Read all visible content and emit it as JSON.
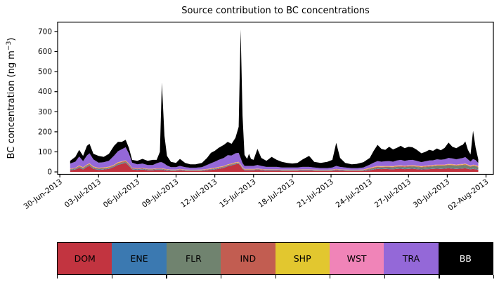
{
  "figure": {
    "title": "Source contribution to BC concentrations",
    "ylabel_main": "BC concentration (ng m",
    "ylabel_sup": "−3",
    "ylabel_close": ")"
  },
  "legend": {
    "items": [
      {
        "label": "DOM",
        "color": "#c23440",
        "text_color": "#000000"
      },
      {
        "label": "ENE",
        "color": "#3b79b1",
        "text_color": "#000000"
      },
      {
        "label": "FLR",
        "color": "#70836f",
        "text_color": "#000000"
      },
      {
        "label": "IND",
        "color": "#c25d51",
        "text_color": "#000000"
      },
      {
        "label": "SHP",
        "color": "#e2c72f",
        "text_color": "#000000"
      },
      {
        "label": "WST",
        "color": "#f084b8",
        "text_color": "#000000"
      },
      {
        "label": "TRA",
        "color": "#9468d8",
        "text_color": "#000000"
      },
      {
        "label": "BB",
        "color": "#000000",
        "text_color": "#ffffff"
      }
    ]
  },
  "chart_data": {
    "type": "area",
    "stacked": true,
    "title": "Source contribution to BC concentrations",
    "xlabel": "",
    "ylabel": "BC concentration (ng m⁻³)",
    "y_ticks": [
      0,
      100,
      200,
      300,
      400,
      500,
      600,
      700
    ],
    "ylim": [
      0,
      745
    ],
    "x_tick_days": [
      0,
      3,
      6,
      9,
      12,
      15,
      18,
      21,
      24,
      27,
      30,
      33
    ],
    "x_tick_labels": [
      "30-Jun-2013",
      "03-Jul-2013",
      "06-Jul-2013",
      "09-Jul-2013",
      "12-Jul-2013",
      "15-Jul-2013",
      "18-Jul-2013",
      "21-Jul-2013",
      "24-Jul-2013",
      "27-Jul-2013",
      "30-Jul-2013",
      "02-Aug-2013"
    ],
    "x_days": [
      0.8,
      1.2,
      1.5,
      1.8,
      2.1,
      2.3,
      2.6,
      3.0,
      3.4,
      3.8,
      4.2,
      4.5,
      4.8,
      5.1,
      5.35,
      5.6,
      6.0,
      6.4,
      6.8,
      7.2,
      7.5,
      7.75,
      7.9,
      8.1,
      8.3,
      8.6,
      9.0,
      9.3,
      9.7,
      10.1,
      10.5,
      11.0,
      11.4,
      11.7,
      12.0,
      12.3,
      12.7,
      13.0,
      13.3,
      13.6,
      13.85,
      14.0,
      14.15,
      14.3,
      14.5,
      14.65,
      14.8,
      15.0,
      15.3,
      15.6,
      16.0,
      16.4,
      16.8,
      17.2,
      17.6,
      18.0,
      18.4,
      18.8,
      19.3,
      19.7,
      20.2,
      20.7,
      21.1,
      21.4,
      21.7,
      22.1,
      22.6,
      23.0,
      23.5,
      24.0,
      24.3,
      24.6,
      24.9,
      25.2,
      25.5,
      25.8,
      26.1,
      26.4,
      26.7,
      27.0,
      27.3,
      27.6,
      28.0,
      28.3,
      28.6,
      28.9,
      29.2,
      29.5,
      29.8,
      30.1,
      30.4,
      30.7,
      31.0,
      31.2,
      31.4,
      31.6,
      31.8,
      32.0,
      32.2,
      32.4
    ],
    "series": [
      {
        "name": "DOM",
        "color": "#c23440",
        "values": [
          8,
          12,
          20,
          12,
          25,
          30,
          15,
          10,
          12,
          15,
          25,
          35,
          40,
          45,
          30,
          12,
          10,
          12,
          8,
          8,
          10,
          10,
          10,
          8,
          6,
          5,
          5,
          8,
          5,
          4,
          4,
          5,
          8,
          10,
          12,
          15,
          20,
          28,
          32,
          38,
          40,
          30,
          15,
          8,
          8,
          8,
          8,
          8,
          10,
          8,
          6,
          6,
          6,
          5,
          5,
          5,
          5,
          6,
          6,
          5,
          4,
          4,
          5,
          8,
          6,
          5,
          4,
          4,
          5,
          8,
          12,
          15,
          14,
          15,
          14,
          13,
          15,
          16,
          14,
          15,
          16,
          14,
          12,
          13,
          14,
          15,
          16,
          15,
          16,
          18,
          16,
          15,
          16,
          17,
          18,
          15,
          13,
          15,
          13,
          11
        ]
      },
      {
        "name": "ENE",
        "color": "#3b79b1",
        "values": [
          2,
          2,
          2,
          2,
          2,
          2,
          2,
          2,
          2,
          2,
          2,
          2,
          2,
          2,
          2,
          2,
          2,
          2,
          2,
          2,
          2,
          2,
          2,
          2,
          2,
          2,
          2,
          2,
          2,
          2,
          2,
          2,
          2,
          2,
          2,
          2,
          2,
          2,
          2,
          2,
          2,
          2,
          2,
          2,
          2,
          2,
          2,
          2,
          2,
          2,
          2,
          2,
          2,
          2,
          2,
          2,
          2,
          2,
          2,
          2,
          2,
          2,
          2,
          2,
          2,
          2,
          2,
          2,
          2,
          2,
          2,
          2,
          2,
          2,
          2,
          2,
          2,
          2,
          2,
          2,
          2,
          2,
          2,
          2,
          2,
          2,
          2,
          2,
          2,
          2,
          2,
          2,
          2,
          2,
          2,
          2,
          2,
          2,
          2,
          2
        ]
      },
      {
        "name": "FLR",
        "color": "#70836f",
        "values": [
          3,
          3,
          4,
          4,
          4,
          5,
          4,
          3,
          3,
          3,
          3,
          4,
          4,
          4,
          3,
          2,
          2,
          2,
          2,
          2,
          2,
          2,
          2,
          2,
          2,
          1,
          1,
          1,
          1,
          1,
          1,
          1,
          1,
          1,
          2,
          2,
          2,
          2,
          2,
          2,
          2,
          2,
          2,
          1,
          1,
          1,
          1,
          1,
          1,
          1,
          1,
          1,
          1,
          1,
          1,
          1,
          1,
          1,
          1,
          1,
          1,
          1,
          1,
          1,
          1,
          1,
          1,
          1,
          1,
          4,
          5,
          6,
          6,
          6,
          7,
          7,
          8,
          8,
          8,
          9,
          9,
          9,
          8,
          9,
          10,
          11,
          12,
          13,
          12,
          13,
          14,
          13,
          14,
          14,
          15,
          13,
          10,
          12,
          13,
          9
        ]
      },
      {
        "name": "IND",
        "color": "#c25d51",
        "values": [
          2,
          2,
          3,
          3,
          3,
          3,
          3,
          3,
          3,
          3,
          3,
          4,
          4,
          4,
          4,
          3,
          2,
          2,
          2,
          2,
          2,
          2,
          2,
          2,
          2,
          2,
          2,
          2,
          2,
          2,
          2,
          2,
          2,
          2,
          2,
          3,
          3,
          3,
          3,
          3,
          3,
          2,
          2,
          2,
          2,
          2,
          2,
          2,
          2,
          2,
          2,
          2,
          2,
          2,
          2,
          2,
          2,
          2,
          2,
          2,
          2,
          2,
          2,
          2,
          2,
          2,
          2,
          2,
          2,
          3,
          3,
          3,
          3,
          3,
          3,
          3,
          3,
          3,
          3,
          3,
          3,
          3,
          3,
          3,
          3,
          3,
          3,
          3,
          3,
          3,
          3,
          3,
          3,
          3,
          3,
          3,
          3,
          3,
          3,
          3
        ]
      },
      {
        "name": "SHP",
        "color": "#e2c72f",
        "values": [
          1,
          1,
          2,
          2,
          2,
          2,
          2,
          2,
          2,
          2,
          2,
          2,
          2,
          2,
          2,
          1,
          1,
          1,
          1,
          1,
          1,
          1,
          1,
          1,
          1,
          1,
          1,
          1,
          1,
          1,
          1,
          1,
          1,
          2,
          2,
          2,
          2,
          2,
          2,
          2,
          2,
          2,
          2,
          1,
          1,
          1,
          1,
          1,
          1,
          1,
          1,
          1,
          1,
          1,
          1,
          1,
          1,
          1,
          1,
          1,
          1,
          1,
          1,
          1,
          1,
          1,
          1,
          1,
          1,
          2,
          2,
          2,
          2,
          2,
          2,
          2,
          2,
          2,
          2,
          2,
          2,
          2,
          2,
          2,
          2,
          2,
          2,
          2,
          2,
          2,
          2,
          2,
          2,
          2,
          2,
          2,
          2,
          2,
          2,
          2
        ]
      },
      {
        "name": "WST",
        "color": "#f084b8",
        "values": [
          1,
          1,
          1,
          1,
          1,
          1,
          1,
          1,
          1,
          1,
          1,
          1,
          1,
          1,
          1,
          1,
          1,
          1,
          1,
          1,
          1,
          1,
          1,
          1,
          1,
          1,
          1,
          1,
          1,
          1,
          1,
          1,
          1,
          1,
          1,
          1,
          1,
          1,
          1,
          1,
          1,
          1,
          1,
          1,
          1,
          1,
          1,
          1,
          1,
          1,
          1,
          1,
          1,
          1,
          1,
          1,
          1,
          1,
          1,
          1,
          1,
          1,
          1,
          1,
          1,
          1,
          1,
          1,
          1,
          2,
          2,
          2,
          2,
          2,
          2,
          2,
          2,
          2,
          2,
          2,
          2,
          2,
          2,
          2,
          2,
          2,
          2,
          2,
          2,
          2,
          2,
          2,
          2,
          2,
          2,
          2,
          2,
          2,
          2,
          2
        ]
      },
      {
        "name": "TRA",
        "color": "#9468d8",
        "values": [
          25,
          30,
          45,
          30,
          45,
          50,
          35,
          25,
          25,
          30,
          45,
          55,
          60,
          65,
          50,
          25,
          20,
          22,
          18,
          18,
          25,
          30,
          30,
          25,
          18,
          12,
          12,
          15,
          12,
          10,
          10,
          12,
          20,
          25,
          30,
          35,
          40,
          45,
          40,
          45,
          45,
          30,
          20,
          15,
          15,
          15,
          15,
          15,
          18,
          15,
          12,
          12,
          12,
          10,
          10,
          10,
          10,
          12,
          12,
          10,
          8,
          8,
          10,
          15,
          12,
          10,
          8,
          8,
          10,
          15,
          20,
          24,
          22,
          23,
          24,
          22,
          25,
          27,
          24,
          26,
          26,
          24,
          20,
          22,
          24,
          23,
          26,
          24,
          26,
          30,
          28,
          26,
          28,
          29,
          32,
          26,
          20,
          28,
          24,
          16
        ]
      },
      {
        "name": "BB",
        "color": "#000000",
        "values": [
          13,
          24,
          33,
          26,
          48,
          47,
          28,
          34,
          27,
          34,
          49,
          47,
          37,
          37,
          28,
          14,
          17,
          23,
          21,
          26,
          17,
          52,
          397,
          139,
          48,
          26,
          21,
          35,
          21,
          17,
          17,
          21,
          35,
          52,
          54,
          60,
          65,
          67,
          58,
          77,
          130,
          641,
          236,
          55,
          35,
          60,
          35,
          30,
          80,
          40,
          30,
          50,
          35,
          28,
          23,
          20,
          23,
          37,
          55,
          28,
          26,
          31,
          38,
          115,
          45,
          23,
          19,
          21,
          26,
          34,
          59,
          81,
          64,
          57,
          71,
          61,
          63,
          70,
          63,
          66,
          63,
          56,
          44,
          47,
          53,
          47,
          54,
          47,
          57,
          76,
          58,
          55,
          63,
          66,
          78,
          47,
          35,
          141,
          61,
          18
        ]
      }
    ]
  }
}
